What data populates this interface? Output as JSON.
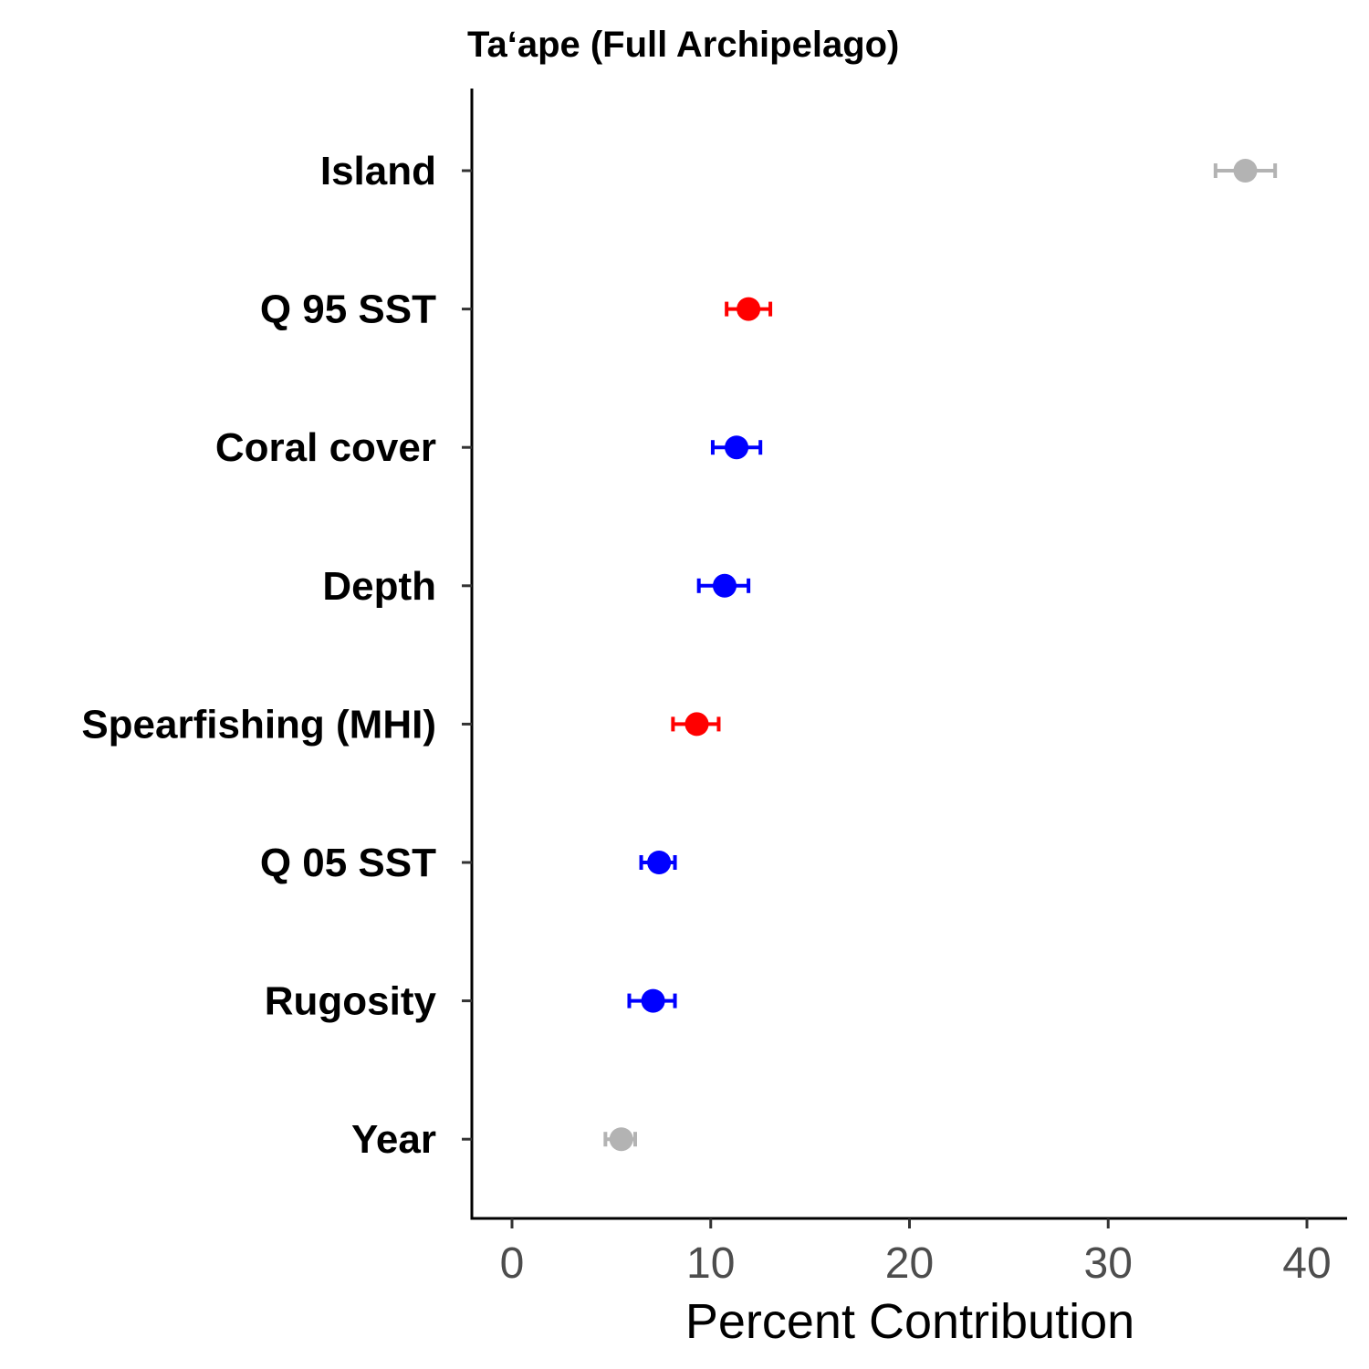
{
  "chart_data": {
    "type": "scatter",
    "title": "Ta‘ape (Full Archipelago)",
    "xlabel": "Percent Contribution",
    "ylabel": "",
    "xlim": [
      -1,
      42
    ],
    "xticks": [
      0,
      10,
      20,
      30,
      40
    ],
    "grid": false,
    "legend": "none",
    "points": [
      {
        "label": "Island",
        "value": 36.9,
        "low": 35.4,
        "high": 38.4,
        "color": "#b3b3b3"
      },
      {
        "label": "Q 95 SST",
        "value": 11.9,
        "low": 10.8,
        "high": 13.0,
        "color": "#ff0000"
      },
      {
        "label": "Coral cover",
        "value": 11.3,
        "low": 10.1,
        "high": 12.5,
        "color": "#0000ff"
      },
      {
        "label": "Depth",
        "value": 10.7,
        "low": 9.4,
        "high": 11.9,
        "color": "#0000ff"
      },
      {
        "label": "Spearfishing (MHI)",
        "value": 9.3,
        "low": 8.1,
        "high": 10.4,
        "color": "#ff0000"
      },
      {
        "label": "Q 05 SST",
        "value": 7.4,
        "low": 6.5,
        "high": 8.2,
        "color": "#0000ff"
      },
      {
        "label": "Rugosity",
        "value": 7.1,
        "low": 5.9,
        "high": 8.2,
        "color": "#0000ff"
      },
      {
        "label": "Year",
        "value": 5.5,
        "low": 4.7,
        "high": 6.2,
        "color": "#b3b3b3"
      }
    ]
  }
}
